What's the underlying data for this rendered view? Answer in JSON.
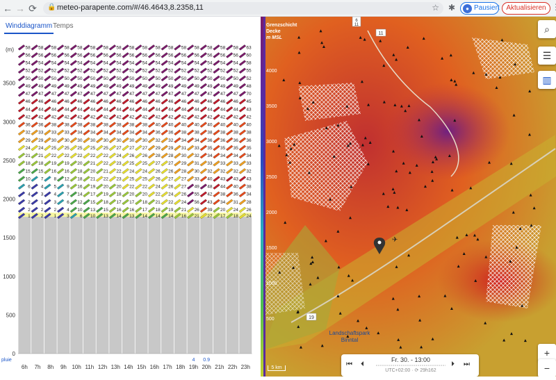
{
  "browser": {
    "url": "meteo-parapente.com/#/46.4643,8.2358,11",
    "profile_label": "Pausiert",
    "update_label": "Aktualisieren"
  },
  "tabs": [
    {
      "label": "Winddiagramm",
      "active": true
    },
    {
      "label": "Temps",
      "active": false
    }
  ],
  "chart_data": {
    "type": "heatmap",
    "ylabel": "(m)",
    "yticks": [
      0,
      500,
      1000,
      1500,
      2000,
      2500,
      3000,
      3500
    ],
    "ylim": [
      0,
      4000
    ],
    "hours": [
      "6h",
      "7h",
      "8h",
      "9h",
      "10h",
      "11h",
      "12h",
      "13h",
      "14h",
      "15h",
      "16h",
      "17h",
      "18h",
      "19h",
      "20h",
      "21h",
      "22h",
      "23h"
    ],
    "pluie_label": "pluie",
    "rain": [
      "",
      "",
      "",
      "",
      "",
      "",
      "",
      "",
      "",
      "",
      "",
      "",
      "",
      "4",
      "0.9",
      "",
      "",
      ""
    ],
    "terrain_top_m": 1770,
    "levels_m": [
      3970,
      3870,
      3770,
      3670,
      3570,
      3470,
      3370,
      3270,
      3170,
      3070,
      2970,
      2870,
      2770,
      2670,
      2570,
      2470,
      2370,
      2270,
      2170,
      2070,
      1970,
      1870,
      1790
    ],
    "rows": [
      [
        58,
        58,
        58,
        58,
        58,
        58,
        58,
        58,
        58,
        58,
        58,
        58,
        58,
        58,
        58,
        58,
        58,
        63
      ],
      [
        56,
        56,
        56,
        56,
        56,
        56,
        56,
        56,
        56,
        56,
        56,
        56,
        56,
        56,
        56,
        56,
        56,
        60
      ],
      [
        54,
        54,
        54,
        54,
        54,
        54,
        54,
        54,
        54,
        54,
        54,
        54,
        54,
        54,
        54,
        54,
        54,
        58
      ],
      [
        52,
        52,
        52,
        52,
        52,
        52,
        52,
        52,
        52,
        52,
        52,
        52,
        52,
        52,
        52,
        52,
        52,
        55
      ],
      [
        50,
        50,
        50,
        50,
        50,
        50,
        50,
        50,
        50,
        50,
        50,
        50,
        50,
        50,
        50,
        50,
        50,
        52
      ],
      [
        49,
        49,
        49,
        49,
        49,
        49,
        49,
        49,
        49,
        49,
        49,
        49,
        49,
        49,
        49,
        49,
        49,
        48
      ],
      [
        47,
        47,
        47,
        47,
        47,
        47,
        47,
        47,
        47,
        47,
        47,
        47,
        47,
        47,
        47,
        47,
        47,
        70
      ],
      [
        46,
        46,
        46,
        46,
        46,
        46,
        46,
        46,
        46,
        46,
        46,
        46,
        46,
        46,
        46,
        46,
        46,
        45
      ],
      [
        44,
        44,
        44,
        44,
        44,
        44,
        44,
        44,
        44,
        44,
        44,
        44,
        44,
        44,
        44,
        44,
        44,
        43
      ],
      [
        42,
        42,
        42,
        42,
        42,
        42,
        42,
        42,
        42,
        42,
        42,
        42,
        42,
        42,
        42,
        42,
        42,
        42
      ],
      [
        36,
        36,
        38,
        38,
        38,
        38,
        38,
        38,
        38,
        38,
        40,
        40,
        40,
        40,
        40,
        40,
        40,
        40
      ],
      [
        32,
        33,
        33,
        33,
        34,
        34,
        34,
        34,
        34,
        34,
        36,
        36,
        38,
        38,
        38,
        38,
        38,
        38
      ],
      [
        29,
        29,
        30,
        30,
        30,
        30,
        30,
        30,
        30,
        30,
        32,
        32,
        34,
        34,
        36,
        36,
        36,
        36
      ],
      [
        24,
        24,
        25,
        25,
        25,
        25,
        25,
        27,
        27,
        27,
        29,
        29,
        31,
        33,
        35,
        35,
        35,
        35
      ],
      [
        21,
        21,
        22,
        22,
        22,
        22,
        22,
        24,
        26,
        26,
        28,
        28,
        30,
        32,
        34,
        34,
        34,
        34
      ],
      [
        18,
        18,
        19,
        19,
        20,
        21,
        22,
        23,
        25,
        25,
        27,
        27,
        29,
        31,
        33,
        33,
        33,
        33
      ],
      [
        15,
        15,
        16,
        16,
        18,
        20,
        21,
        22,
        24,
        24,
        26,
        26,
        28,
        30,
        32,
        32,
        32,
        32
      ],
      [
        10,
        7,
        8,
        12,
        18,
        21,
        22,
        23,
        25,
        25,
        26,
        27,
        27,
        33,
        40,
        43,
        43,
        43
      ],
      [
        6,
        4,
        5,
        9,
        16,
        19,
        20,
        20,
        22,
        22,
        24,
        26,
        27,
        49,
        48,
        44,
        40,
        38
      ],
      [
        4,
        3,
        4,
        7,
        14,
        17,
        19,
        18,
        20,
        20,
        22,
        24,
        26,
        55,
        42,
        38,
        36,
        34
      ],
      [
        2,
        1,
        3,
        6,
        12,
        15,
        18,
        17,
        17,
        18,
        21,
        22,
        24,
        56,
        43,
        34,
        31,
        28
      ],
      [
        2,
        2,
        2,
        4,
        10,
        13,
        15,
        16,
        16,
        17,
        18,
        19,
        21,
        26,
        39,
        20,
        24,
        26
      ],
      [
        1,
        2,
        1,
        3,
        6,
        10,
        13,
        14,
        13,
        14,
        14,
        14,
        16,
        21,
        27,
        17,
        18,
        24
      ]
    ],
    "color_scale": [
      {
        "max": 4,
        "color": "#3a3aa8"
      },
      {
        "max": 9,
        "color": "#2aa0b0"
      },
      {
        "max": 15,
        "color": "#4aa84a"
      },
      {
        "max": 21,
        "color": "#9ac83a"
      },
      {
        "max": 27,
        "color": "#e8e030"
      },
      {
        "max": 33,
        "color": "#f0a020"
      },
      {
        "max": 40,
        "color": "#e84a1a"
      },
      {
        "max": 46,
        "color": "#c01a2a"
      },
      {
        "max": 999,
        "color": "#7a1a6a"
      }
    ]
  },
  "map": {
    "legend_title_1": "Grenzschicht",
    "legend_title_2": "Decke",
    "legend_title_3": "m MSL",
    "legend_values": [
      "4000",
      "3500",
      "3000",
      "2500",
      "2000",
      "1500",
      "1000",
      "500"
    ],
    "road_labels": [
      "6",
      "11",
      "11",
      "19"
    ],
    "place_label_1": "Landschaftspark",
    "place_label_2": "Binntal",
    "scale_label": "5 km",
    "time_label": "Fr. 30. - 13:00",
    "tz_label": "UTC+02:00 · ⟳ 29h162",
    "zoom_in": "+",
    "zoom_out": "−"
  }
}
